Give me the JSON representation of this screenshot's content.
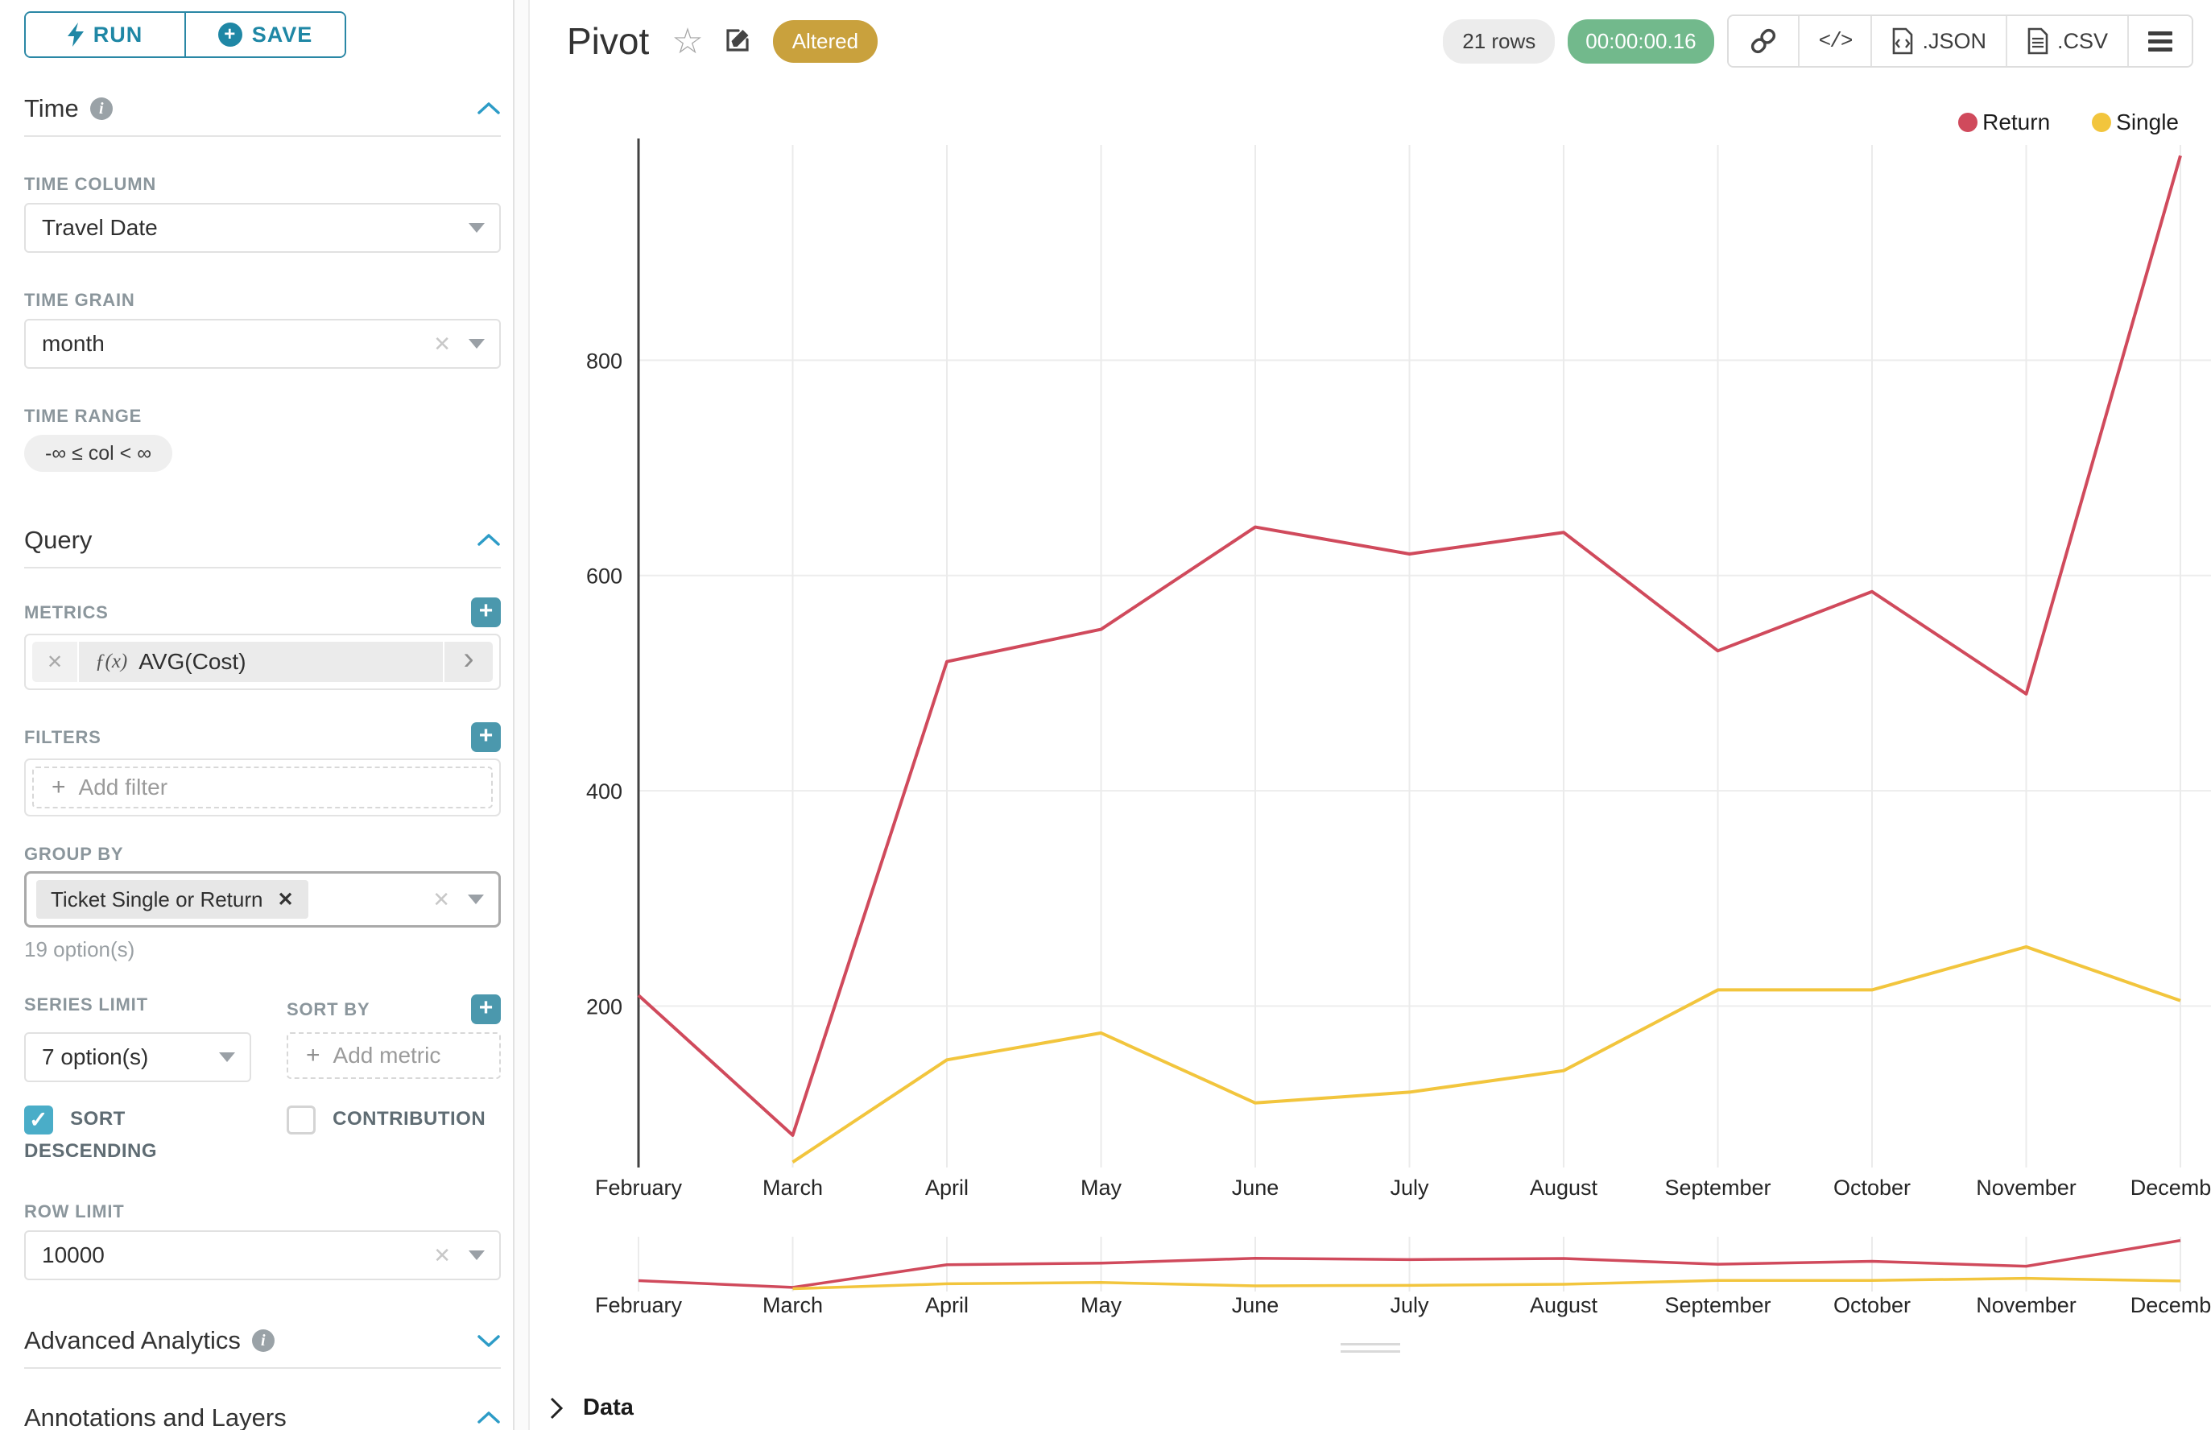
{
  "toolbar": {
    "run_label": "RUN",
    "save_label": "SAVE"
  },
  "sidebar": {
    "time": {
      "title": "Time",
      "time_column_label": "TIME COLUMN",
      "time_column_value": "Travel Date",
      "time_grain_label": "TIME GRAIN",
      "time_grain_value": "month",
      "time_range_label": "TIME RANGE",
      "time_range_value": "-∞ ≤ col < ∞"
    },
    "query": {
      "title": "Query",
      "metrics_label": "METRICS",
      "metric_fn": "ƒ(x)",
      "metric_value": "AVG(Cost)",
      "filters_label": "FILTERS",
      "add_filter_label": "Add filter",
      "group_by_label": "GROUP BY",
      "group_by_tag": "Ticket Single or Return",
      "group_by_hint": "19 option(s)",
      "series_limit_label": "SERIES LIMIT",
      "series_limit_value": "7 option(s)",
      "sort_by_label": "SORT BY",
      "add_metric_label": "Add metric",
      "sort_descending_label": "SORT DESCENDING",
      "contribution_label": "CONTRIBUTION",
      "row_limit_label": "ROW LIMIT",
      "row_limit_value": "10000"
    },
    "advanced_title": "Advanced Analytics",
    "annotations_title": "Annotations and Layers"
  },
  "header": {
    "title": "Pivot",
    "badge": "Altered",
    "rows_badge": "21 rows",
    "timer": "00:00:00.16",
    "code_icon_label": "</>",
    "json_label": ".JSON",
    "csv_label": ".CSV"
  },
  "footer": {
    "data_label": "Data"
  },
  "icons": {
    "star": "☆",
    "clear": "✕",
    "tag_close": "✕",
    "plus": "+",
    "metric_chevron": "›",
    "check": "✓",
    "info": "i"
  },
  "chart_data": {
    "type": "line",
    "title": "Pivot",
    "x": [
      "February",
      "March",
      "April",
      "May",
      "June",
      "July",
      "August",
      "September",
      "October",
      "November",
      "December"
    ],
    "series": [
      {
        "name": "Return",
        "color": "#d04a5c",
        "values": [
          210,
          80,
          520,
          550,
          645,
          620,
          640,
          530,
          585,
          490,
          990
        ]
      },
      {
        "name": "Single",
        "color": "#f2c53d",
        "values": [
          null,
          55,
          150,
          175,
          110,
          120,
          140,
          215,
          215,
          255,
          205
        ]
      }
    ],
    "xlabel": "",
    "ylabel": "",
    "ylim": [
      50,
      1000
    ],
    "yticks": [
      200,
      400,
      600,
      800
    ],
    "grid": true,
    "legend_position": "top-right",
    "has_context_brush_chart": true
  }
}
